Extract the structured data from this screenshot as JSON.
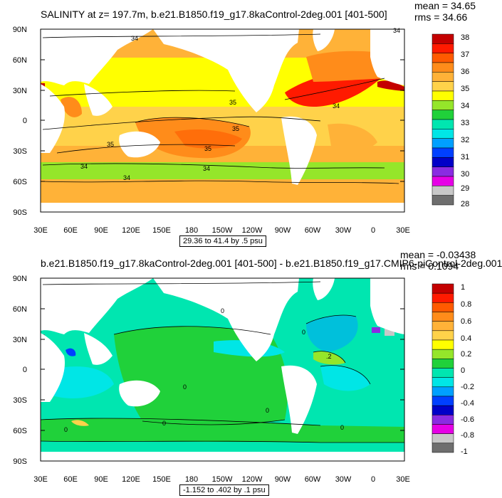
{
  "colors": {
    "land": "#ffffff",
    "frame": "#000000",
    "contour": "#000000"
  },
  "panels": [
    {
      "title": "SALINITY at z= 197.7m, b.e21.B1850.f19_g17.8kaControl-2deg.001 [401-500]",
      "mean": "mean = 34.65",
      "rms": "rms = 34.66",
      "range_label": "29.36 to 41.4 by .5 psu",
      "lat_labels": [
        "90N",
        "60N",
        "30N",
        "0",
        "30S",
        "60S",
        "90S"
      ],
      "lon_labels": [
        "30E",
        "60E",
        "90E",
        "120E",
        "150E",
        "180",
        "150W",
        "120W",
        "90W",
        "60W",
        "30W",
        "0",
        "30E"
      ],
      "colorbar_labels": [
        "38",
        "37",
        "36",
        "35",
        "34",
        "33",
        "32",
        "31",
        "30",
        "29",
        "28"
      ],
      "colorbar_colors": [
        "#c40000",
        "#ff1a00",
        "#ff5a00",
        "#ff8c1a",
        "#ffb238",
        "#ffd24a",
        "#ffff00",
        "#95e62a",
        "#20d13a",
        "#00e6b0",
        "#00e6e6",
        "#00a0ff",
        "#0040ff",
        "#0000c8",
        "#8a2be2",
        "#e600e6",
        "#c8c8c8",
        "#6e6e6e"
      ],
      "contour_labels": [
        "34",
        "34",
        "35",
        "35",
        "35",
        "35",
        "34",
        "34",
        "34",
        "34"
      ]
    },
    {
      "title": "b.e21.B1850.f19_g17.8kaControl-2deg.001 [401-500] - b.e21.B1850.f19_g17.CMIP6-piControl-2deg.001",
      "mean": "mean = -0.03438",
      "rms": "rms = 0.1094",
      "range_label": "-1.152 to .402 by .1 psu",
      "lat_labels": [
        "90N",
        "60N",
        "30N",
        "0",
        "30S",
        "60S",
        "90S"
      ],
      "lon_labels": [
        "30E",
        "60E",
        "90E",
        "120E",
        "150E",
        "180",
        "150W",
        "120W",
        "90W",
        "60W",
        "30W",
        "0",
        "30E"
      ],
      "colorbar_labels": [
        "1",
        "0.8",
        "0.6",
        "0.4",
        "0.2",
        "0",
        "-0.2",
        "-0.4",
        "-0.6",
        "-0.8",
        "-1"
      ],
      "colorbar_colors": [
        "#c40000",
        "#ff1a00",
        "#ff5a00",
        "#ff8c1a",
        "#ffb238",
        "#ffd24a",
        "#ffff00",
        "#95e62a",
        "#20d13a",
        "#00e6b0",
        "#00e6e6",
        "#00a0ff",
        "#0040ff",
        "#0000c8",
        "#8a2be2",
        "#e600e6",
        "#c8c8c8",
        "#6e6e6e"
      ],
      "contour_labels": [
        "0",
        "0",
        "0",
        "0",
        "0",
        ".2",
        "0",
        "0"
      ]
    }
  ]
}
